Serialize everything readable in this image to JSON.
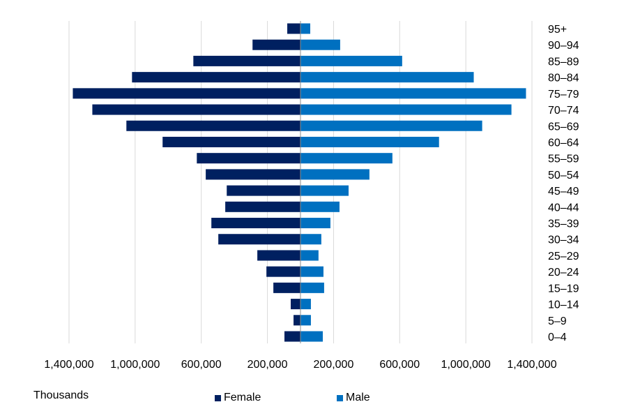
{
  "chart_data": {
    "type": "bar",
    "orientation": "horizontal",
    "variant": "population-pyramid",
    "units_label": "Thousands",
    "categories": [
      "95+",
      "90–94",
      "85–89",
      "80–84",
      "75–79",
      "70–74",
      "65–69",
      "60–64",
      "55–59",
      "50–54",
      "45–49",
      "40–44",
      "35–39",
      "30–34",
      "25–29",
      "20–24",
      "15–19",
      "10–14",
      "5–9",
      "0–4"
    ],
    "series": [
      {
        "name": "Female",
        "color": "#002060",
        "side": "left",
        "values": [
          80000,
          290000,
          648000,
          1019000,
          1377000,
          1259000,
          1053000,
          834000,
          627000,
          573000,
          446000,
          455000,
          539000,
          497000,
          261000,
          206000,
          164000,
          59000,
          42000,
          97000
        ]
      },
      {
        "name": "Male",
        "color": "#0070C0",
        "side": "right",
        "values": [
          59000,
          240000,
          615000,
          1048000,
          1364000,
          1276000,
          1099000,
          838000,
          556000,
          417000,
          291000,
          236000,
          181000,
          126000,
          109000,
          139000,
          143000,
          63000,
          63000,
          135000
        ]
      }
    ],
    "xlim": [
      -1400000,
      1400000
    ],
    "x_ticks": [
      -1400000,
      -1000000,
      -600000,
      -200000,
      200000,
      600000,
      1000000,
      1400000
    ],
    "x_tick_labels": [
      "1,400,000",
      "1,000,000",
      "600,000",
      "200,000",
      "200,000",
      "600,000",
      "1,000,000",
      "1,400,000"
    ],
    "grid": true,
    "legend": "bottom"
  }
}
